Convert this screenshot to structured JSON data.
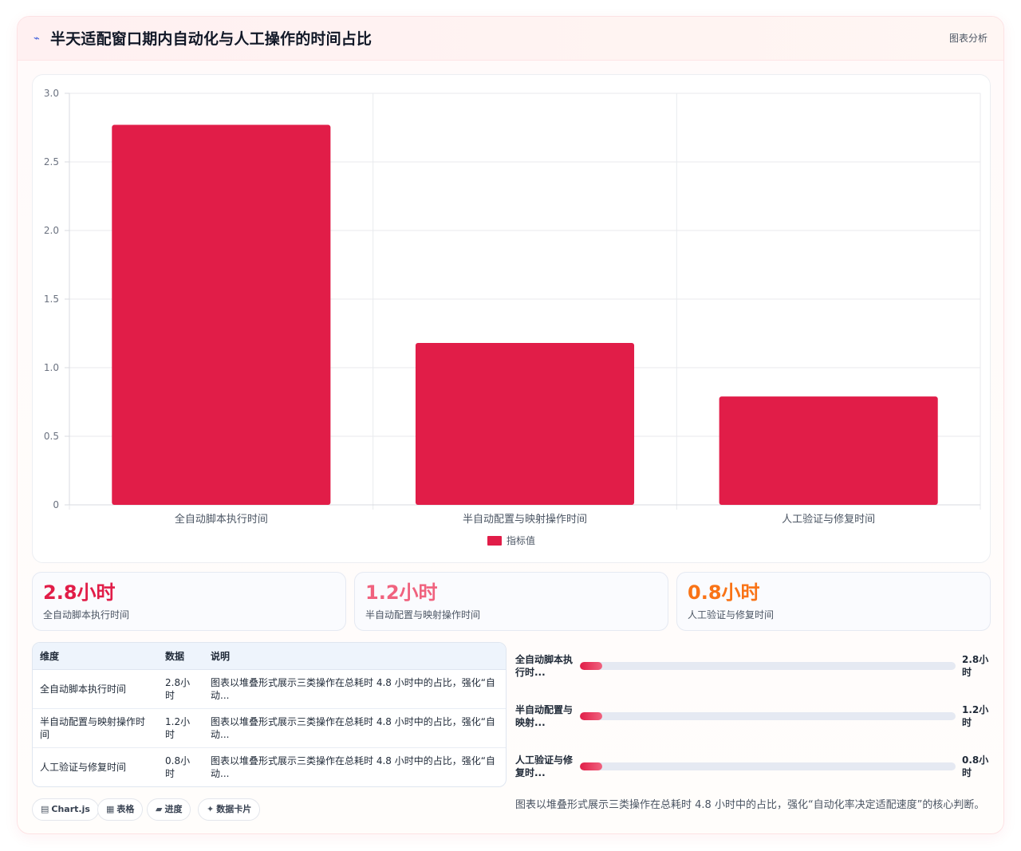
{
  "header": {
    "icon": "sparkline-icon",
    "title": "半天适配窗口期内自动化与人工操作的时间占比",
    "link_label": "图表分析"
  },
  "chart_data": {
    "type": "bar",
    "categories": [
      "全自动脚本执行时间",
      "半自动配置与映射操作时间",
      "人工验证与修复时间"
    ],
    "series": [
      {
        "name": "指标值",
        "values": [
          2.77,
          1.18,
          0.79
        ]
      }
    ],
    "ylim": [
      0,
      3.0
    ],
    "yticks": [
      "0",
      "0.5",
      "1.0",
      "1.5",
      "2.0",
      "2.5",
      "3.0"
    ],
    "grid": true,
    "legend_position": "bottom",
    "bar_color": "#e11d48"
  },
  "stats": [
    {
      "value": "2.8小时",
      "label": "全自动脚本执行时间",
      "color": "#e11d48"
    },
    {
      "value": "1.2小时",
      "label": "半自动配置与映射操作时间",
      "color": "#f0627e"
    },
    {
      "value": "0.8小时",
      "label": "人工验证与修复时间",
      "color": "#f97316"
    }
  ],
  "table": {
    "headers": [
      "维度",
      "数据",
      "说明"
    ],
    "rows": [
      [
        "全自动脚本执行时间",
        "2.8小时",
        "图表以堆叠形式展示三类操作在总耗时 4.8 小时中的占比，强化“自动..."
      ],
      [
        "半自动配置与映射操作时间",
        "1.2小时",
        "图表以堆叠形式展示三类操作在总耗时 4.8 小时中的占比，强化“自动..."
      ],
      [
        "人工验证与修复时间",
        "0.8小时",
        "图表以堆叠形式展示三类操作在总耗时 4.8 小时中的占比，强化“自动..."
      ]
    ]
  },
  "progress": [
    {
      "label": "全自动脚本执行时...",
      "value": "2.8小时",
      "fraction": 0.06
    },
    {
      "label": "半自动配置与映射...",
      "value": "1.2小时",
      "fraction": 0.06
    },
    {
      "label": "人工验证与修复时...",
      "value": "0.8小时",
      "fraction": 0.06
    }
  ],
  "chips": [
    {
      "icon": "chart-icon",
      "glyph": "▤",
      "label": "Chart.js"
    },
    {
      "icon": "table-icon",
      "glyph": "▦",
      "label": "表格"
    },
    {
      "icon": "progress-icon",
      "glyph": "▰",
      "label": "进度"
    },
    {
      "icon": "card-icon",
      "glyph": "✦",
      "label": "数据卡片"
    }
  ],
  "footnote": "图表以堆叠形式展示三类操作在总耗时 4.8 小时中的占比，强化“自动化率决定适配速度”的核心判断。"
}
